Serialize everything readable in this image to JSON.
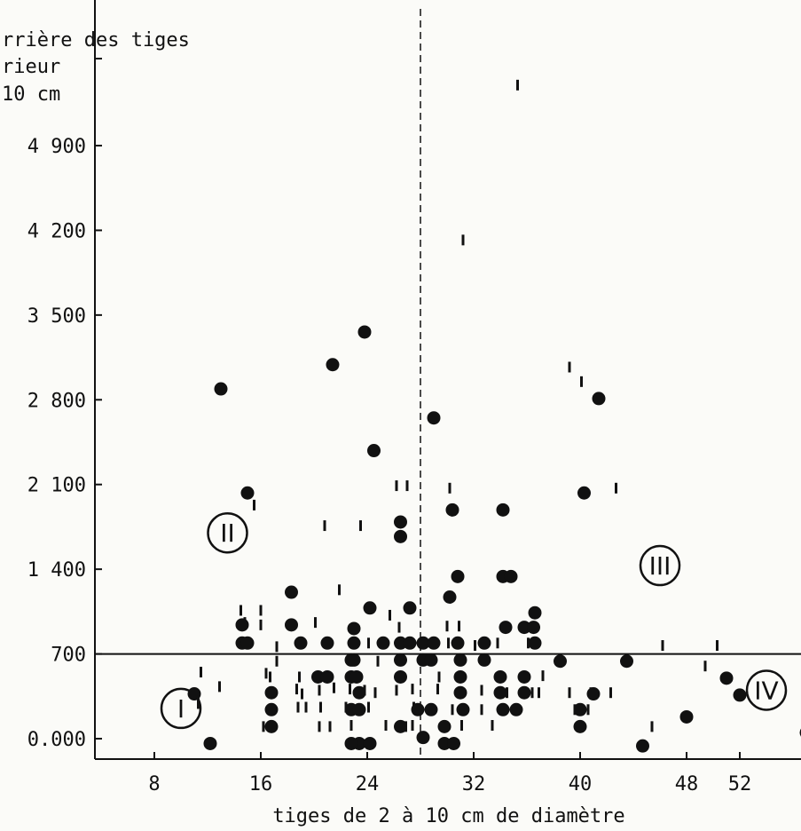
{
  "chart_data": {
    "type": "scatter",
    "title": "",
    "ylabel_lines": [
      "rrière des tiges",
      "rieur",
      "10 cm"
    ],
    "xlabel": "tiges de 2 à 10 cm de diamètre",
    "xlim": [
      4,
      58
    ],
    "ylim": [
      0,
      5600
    ],
    "x_ticks": [
      8,
      16,
      24,
      32,
      40,
      48,
      52
    ],
    "x_tick_labels": [
      "8",
      "16",
      "24",
      "32",
      "40",
      "48",
      "52"
    ],
    "y_ticks": [
      0,
      700,
      1400,
      2100,
      2800,
      3500,
      4200,
      4900
    ],
    "y_tick_labels": [
      "0.000",
      "700",
      "1 400",
      "2 100",
      "2 800",
      "3 500",
      "4 200",
      "4 900"
    ],
    "thresholds": {
      "x": 28.0,
      "y": 700
    },
    "zones": [
      {
        "label": "I",
        "x": 10.0,
        "y": 250
      },
      {
        "label": "II",
        "x": 13.5,
        "y": 1700
      },
      {
        "label": "III",
        "x": 46.0,
        "y": 1430
      },
      {
        "label": "IV",
        "x": 54.0,
        "y": 400
      }
    ],
    "series": [
      {
        "marker": "dot",
        "points": [
          [
            12.2,
            -40
          ],
          [
            11,
            370
          ],
          [
            13,
            2890
          ],
          [
            15,
            2030
          ],
          [
            14.6,
            940
          ],
          [
            14.6,
            790
          ],
          [
            15,
            790
          ],
          [
            16.8,
            380
          ],
          [
            16.8,
            240
          ],
          [
            16.8,
            100
          ],
          [
            18.3,
            1210
          ],
          [
            18.3,
            940
          ],
          [
            19,
            790
          ],
          [
            20.3,
            510
          ],
          [
            21,
            510
          ],
          [
            21,
            790
          ],
          [
            21.4,
            3090
          ],
          [
            22.8,
            650
          ],
          [
            23,
            650
          ],
          [
            22.8,
            510
          ],
          [
            23.2,
            510
          ],
          [
            22.8,
            240
          ],
          [
            23.4,
            380
          ],
          [
            23.4,
            240
          ],
          [
            23.4,
            -40
          ],
          [
            22.8,
            -40
          ],
          [
            24.2,
            -40
          ],
          [
            23,
            790
          ],
          [
            23,
            910
          ],
          [
            23.8,
            3360
          ],
          [
            24.2,
            1080
          ],
          [
            24.5,
            2380
          ],
          [
            25.2,
            790
          ],
          [
            26.5,
            790
          ],
          [
            26.5,
            650
          ],
          [
            26.5,
            510
          ],
          [
            26.5,
            100
          ],
          [
            26.5,
            1790
          ],
          [
            26.5,
            1670
          ],
          [
            27.2,
            1080
          ],
          [
            27.2,
            790
          ],
          [
            28.2,
            790
          ],
          [
            28.2,
            650
          ],
          [
            28.8,
            650
          ],
          [
            27.8,
            240
          ],
          [
            28.8,
            240
          ],
          [
            29,
            2650
          ],
          [
            29,
            790
          ],
          [
            28.2,
            10
          ],
          [
            29.8,
            100
          ],
          [
            29.8,
            -40
          ],
          [
            30.5,
            -40
          ],
          [
            30.4,
            1890
          ],
          [
            30.2,
            1170
          ],
          [
            30.8,
            1340
          ],
          [
            30.8,
            790
          ],
          [
            31,
            650
          ],
          [
            31,
            510
          ],
          [
            31,
            380
          ],
          [
            31.2,
            240
          ],
          [
            32.8,
            790
          ],
          [
            32.8,
            650
          ],
          [
            34,
            510
          ],
          [
            34,
            380
          ],
          [
            34.2,
            240
          ],
          [
            34.2,
            1890
          ],
          [
            34.2,
            1340
          ],
          [
            34.8,
            1340
          ],
          [
            34.4,
            920
          ],
          [
            35.2,
            240
          ],
          [
            35.8,
            510
          ],
          [
            35.8,
            380
          ],
          [
            35.8,
            920
          ],
          [
            36.5,
            920
          ],
          [
            36.6,
            1040
          ],
          [
            36.6,
            790
          ],
          [
            38.5,
            640
          ],
          [
            40,
            240
          ],
          [
            40,
            100
          ],
          [
            40.3,
            2030
          ],
          [
            41,
            370
          ],
          [
            41.4,
            2810
          ],
          [
            43.5,
            640
          ],
          [
            44.7,
            -60
          ],
          [
            48,
            180
          ],
          [
            51,
            500
          ],
          [
            52,
            360
          ],
          [
            57,
            50
          ]
        ]
      },
      {
        "marker": "tick",
        "points": [
          [
            35.3,
            5400
          ],
          [
            31.2,
            4120
          ],
          [
            39.2,
            3070
          ],
          [
            40.1,
            2950
          ],
          [
            42.7,
            2070
          ],
          [
            27,
            2090
          ],
          [
            26.2,
            2090
          ],
          [
            30.2,
            2070
          ],
          [
            15.5,
            1930
          ],
          [
            20.8,
            1760
          ],
          [
            23.5,
            1760
          ],
          [
            14.5,
            1060
          ],
          [
            16,
            1060
          ],
          [
            14.8,
            960
          ],
          [
            16,
            940
          ],
          [
            17.2,
            760
          ],
          [
            20.1,
            960
          ],
          [
            21.9,
            1230
          ],
          [
            24.1,
            790
          ],
          [
            25.7,
            1020
          ],
          [
            24.8,
            640
          ],
          [
            26.4,
            920
          ],
          [
            30,
            930
          ],
          [
            30.9,
            930
          ],
          [
            30.1,
            790
          ],
          [
            32.1,
            770
          ],
          [
            33.8,
            790
          ],
          [
            36.1,
            790
          ],
          [
            46.2,
            770
          ],
          [
            50.3,
            770
          ],
          [
            11.5,
            550
          ],
          [
            12.9,
            430
          ],
          [
            11.3,
            290
          ],
          [
            17.2,
            640
          ],
          [
            16.4,
            540
          ],
          [
            16.7,
            510
          ],
          [
            18.9,
            510
          ],
          [
            18.7,
            410
          ],
          [
            19.1,
            370
          ],
          [
            20.4,
            400
          ],
          [
            21.5,
            420
          ],
          [
            20.5,
            260
          ],
          [
            16.2,
            100
          ],
          [
            17,
            100
          ],
          [
            18.8,
            260
          ],
          [
            19.4,
            260
          ],
          [
            20.4,
            100
          ],
          [
            21.2,
            100
          ],
          [
            22.7,
            410
          ],
          [
            23.2,
            380
          ],
          [
            23.8,
            400
          ],
          [
            24.6,
            380
          ],
          [
            22.4,
            260
          ],
          [
            22.8,
            110
          ],
          [
            24.1,
            260
          ],
          [
            25.4,
            110
          ],
          [
            26.2,
            400
          ],
          [
            27.4,
            410
          ],
          [
            26.9,
            100
          ],
          [
            27.5,
            260
          ],
          [
            27.4,
            110
          ],
          [
            29.4,
            510
          ],
          [
            29.3,
            410
          ],
          [
            30.4,
            240
          ],
          [
            32.6,
            400
          ],
          [
            31.1,
            110
          ],
          [
            32.6,
            240
          ],
          [
            33.4,
            110
          ],
          [
            34.5,
            380
          ],
          [
            36.4,
            380
          ],
          [
            36.9,
            380
          ],
          [
            39.2,
            380
          ],
          [
            40.8,
            380
          ],
          [
            42.3,
            380
          ],
          [
            39.6,
            240
          ],
          [
            40.6,
            240
          ],
          [
            45.4,
            100
          ],
          [
            49.4,
            600
          ],
          [
            37.2,
            520
          ]
        ]
      }
    ]
  }
}
